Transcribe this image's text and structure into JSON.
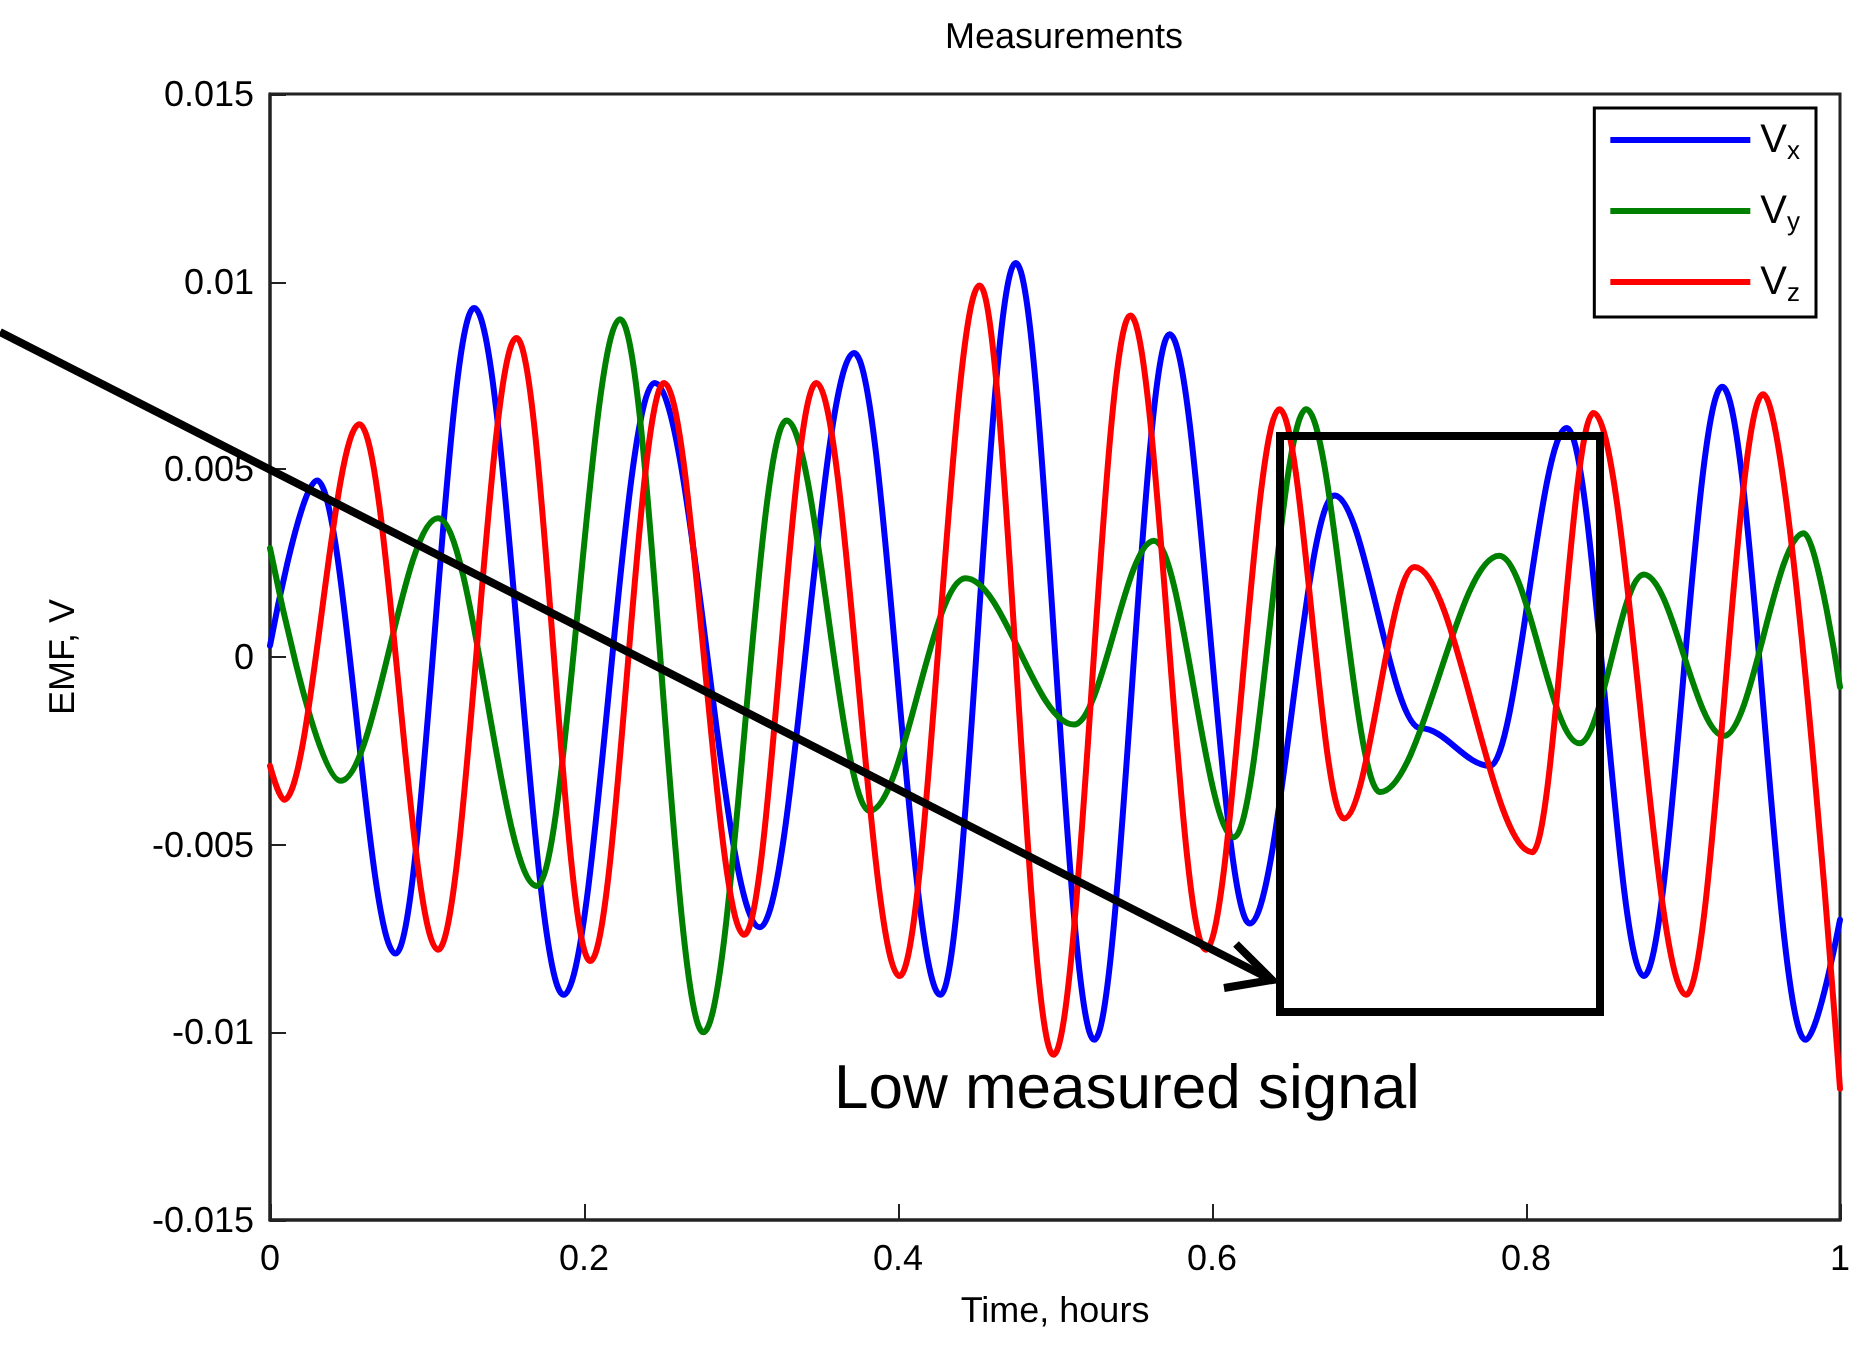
{
  "chart_data": {
    "type": "line",
    "title": "Measurements",
    "xlabel": "Time, hours",
    "ylabel": "EMF, V",
    "xlim": [
      0,
      1
    ],
    "xticks": [
      0,
      0.2,
      0.4,
      0.6,
      0.8,
      1
    ],
    "ylim": [
      -0.015,
      0.015
    ],
    "yticks": [
      -0.015,
      -0.01,
      -0.005,
      0,
      0.005,
      0.01,
      0.015
    ],
    "grid": false,
    "legend": "top right",
    "marker": "none",
    "line_style": "solid",
    "annotations": [
      "Low measured signal"
    ],
    "series": [
      {
        "name": "V$_{x}$",
        "color": "#0000ff",
        "x": [
          0,
          0.03,
          0.08,
          0.13,
          0.187,
          0.245,
          0.312,
          0.372,
          0.427,
          0.475,
          0.525,
          0.573,
          0.624,
          0.678,
          0.733,
          0.777,
          0.826,
          0.875,
          0.925,
          0.978,
          1
        ],
        "values": [
          0.0003,
          0.0047,
          -0.0079,
          0.0093,
          -0.009,
          0.0073,
          -0.0072,
          0.0081,
          -0.009,
          0.0105,
          -0.0102,
          0.0086,
          -0.0071,
          0.0043,
          -0.0019,
          -0.0029,
          0.0061,
          -0.0085,
          0.0072,
          -0.0102,
          -0.007
        ]
      },
      {
        "name": "V$_{y}$",
        "color": "#008000",
        "x": [
          0,
          0.045,
          0.107,
          0.17,
          0.223,
          0.276,
          0.329,
          0.382,
          0.443,
          0.512,
          0.563,
          0.614,
          0.66,
          0.707,
          0.783,
          0.834,
          0.875,
          0.926,
          0.977,
          1
        ],
        "values": [
          0.0029,
          -0.0033,
          0.0037,
          -0.0061,
          0.009,
          -0.01,
          0.0063,
          -0.0041,
          0.0021,
          -0.0018,
          0.0031,
          -0.0048,
          0.0066,
          -0.0036,
          0.0027,
          -0.0023,
          0.0022,
          -0.0021,
          0.0033,
          -0.0008
        ]
      },
      {
        "name": "V$_{z}$",
        "color": "#ff0000",
        "x": [
          0,
          0.009,
          0.057,
          0.107,
          0.157,
          0.204,
          0.251,
          0.302,
          0.348,
          0.401,
          0.452,
          0.499,
          0.548,
          0.596,
          0.643,
          0.684,
          0.729,
          0.804,
          0.843,
          0.902,
          0.951,
          1
        ],
        "values": [
          -0.0029,
          -0.0038,
          0.0062,
          -0.0078,
          0.0085,
          -0.0081,
          0.0073,
          -0.0074,
          0.0073,
          -0.0085,
          0.0099,
          -0.0106,
          0.0091,
          -0.0078,
          0.0066,
          -0.0043,
          0.0024,
          -0.0052,
          0.0065,
          -0.009,
          0.007,
          -0.0115
        ]
      }
    ]
  }
}
